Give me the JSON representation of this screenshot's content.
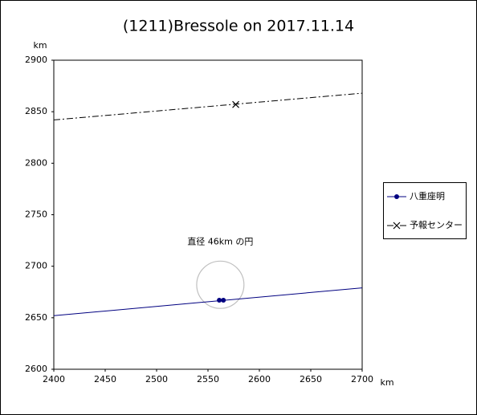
{
  "chart_data": {
    "type": "line",
    "title": "(1211)Bressole on 2017.11.14",
    "x_label": "km",
    "y_label": "km",
    "xlim": [
      2400,
      2700
    ],
    "xticks": [
      2400,
      2450,
      2500,
      2550,
      2600,
      2650,
      2700
    ],
    "ylim": [
      2600,
      2900
    ],
    "yticks": [
      2600,
      2650,
      2700,
      2750,
      2800,
      2850,
      2900
    ],
    "grid": false,
    "legend": "right",
    "series": [
      {
        "name": "八重座明",
        "color": "#000080",
        "marker": "dot",
        "dash": "solid",
        "x": [
          2561,
          2565
        ],
        "values": [
          2667,
          2667
        ],
        "line_x": [
          2400,
          2700
        ],
        "line_values": [
          2652,
          2679
        ]
      },
      {
        "name": "予報センター",
        "color": "#000000",
        "marker": "cross",
        "dash": "dashdot",
        "x": [
          2577
        ],
        "values": [
          2857
        ],
        "line_x": [
          2400,
          2700
        ],
        "line_values": [
          2842,
          2868
        ]
      }
    ],
    "circle": {
      "x": 2562,
      "y": 2682,
      "diameter": 46,
      "color": "#c0c0c0",
      "label": "直径 46km の円"
    }
  }
}
